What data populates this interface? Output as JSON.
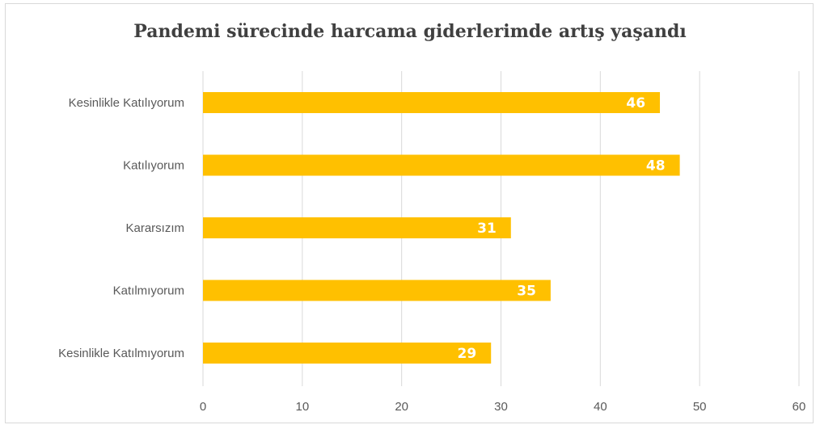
{
  "chart_data": {
    "type": "bar",
    "orientation": "horizontal",
    "title": "Pandemi sürecinde harcama giderlerimde artış yaşandı",
    "categories": [
      "Kesinlikle Katılıyorum",
      "Katılıyorum",
      "Kararsızım",
      "Katılmıyorum",
      "Kesinlikle Katılmıyorum"
    ],
    "values": [
      46,
      48,
      31,
      35,
      29
    ],
    "xlim": [
      0,
      60
    ],
    "xticks": [
      0,
      10,
      20,
      30,
      40,
      50,
      60
    ],
    "xlabel": "",
    "ylabel": "",
    "grid": true,
    "data_labels": true,
    "bar_color": "#ffc000",
    "label_color": "#ffffff"
  }
}
